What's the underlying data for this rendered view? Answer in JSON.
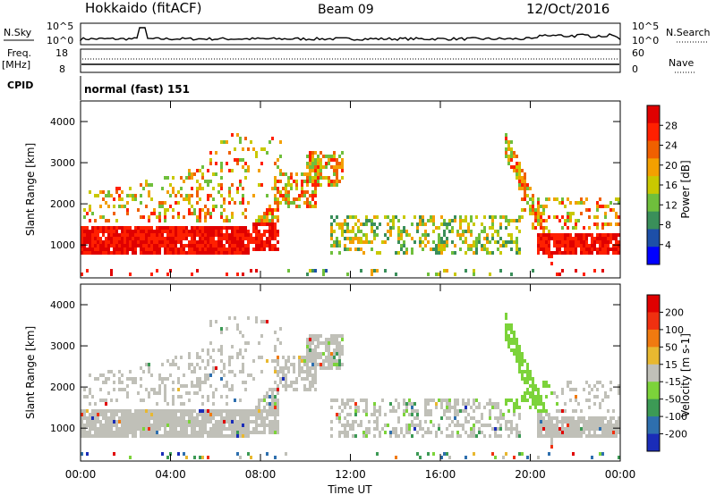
{
  "header": {
    "station": "Hokkaido (fitACF)",
    "beam": "Beam 09",
    "date": "12/Oct/2016"
  },
  "strips": {
    "nsky_label": "N.Sky",
    "nsearch_label": "N.Search",
    "nsky_scale_top": "10^5",
    "nsky_scale_bottom": "10^0",
    "nsky_scale_top_right": "10^5",
    "nsky_scale_bottom_right": "10^0",
    "freq_label": "Freq.",
    "freq_unit": "[MHz]",
    "freq_top": "18",
    "freq_bottom": "8",
    "nave_label": "Nave",
    "nave_top": "60",
    "nave_bottom": "0",
    "cpid_label": "CPID",
    "cpid_value": "normal (fast) 151"
  },
  "chart_data": [
    {
      "type": "heatmap",
      "panel": "power",
      "ylabel": "Slant Range [km]",
      "xlabel": "",
      "x_ticks": [
        "00:00",
        "04:00",
        "08:00",
        "12:00",
        "16:00",
        "20:00",
        "00:00"
      ],
      "y_ticks": [
        1000,
        2000,
        3000,
        4000
      ],
      "ylim": [
        200,
        4500
      ],
      "colorbar": {
        "label": "Power [dB]",
        "ticks": [
          "4",
          "8",
          "12",
          "16",
          "20",
          "24",
          "28"
        ],
        "colors": [
          "#0000ff",
          "#1d4fa8",
          "#3a8f5a",
          "#6fbf3c",
          "#c9c800",
          "#f3a000",
          "#f06000",
          "#ff2000",
          "#e00000"
        ]
      }
    },
    {
      "type": "heatmap",
      "panel": "velocity",
      "ylabel": "Slant Range [km]",
      "xlabel": "Time UT",
      "x_ticks": [
        "00:00",
        "04:00",
        "08:00",
        "12:00",
        "16:00",
        "20:00",
        "00:00"
      ],
      "y_ticks": [
        1000,
        2000,
        3000,
        4000
      ],
      "ylim": [
        200,
        4500
      ],
      "colorbar": {
        "label": "Velocity [m s-1]",
        "ticks": [
          "200",
          "100",
          "50",
          "15",
          "-15",
          "-50",
          "-100",
          "-200"
        ],
        "colors": [
          "#1a2cb8",
          "#2e6fae",
          "#3c9a55",
          "#7cd33a",
          "#c0c0b8",
          "#e8b830",
          "#f07a10",
          "#f03010",
          "#e00000"
        ]
      }
    }
  ]
}
